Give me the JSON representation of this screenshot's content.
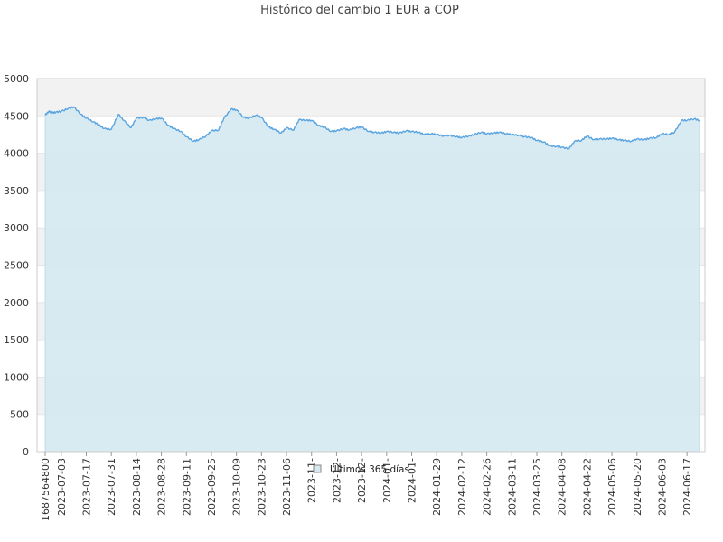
{
  "chart_data": {
    "type": "area",
    "title": "Histórico del cambio 1 EUR a COP",
    "xlabel": "",
    "ylabel": "",
    "ylim": [
      0,
      5000
    ],
    "yticks": [
      0,
      500,
      1000,
      1500,
      2000,
      2500,
      3000,
      3500,
      4000,
      4500,
      5000
    ],
    "xticks": [
      "1687564800",
      "2023-07-03",
      "2023-07-17",
      "2023-07-31",
      "2023-08-14",
      "2023-08-28",
      "2023-09-11",
      "2023-09-25",
      "2023-10-09",
      "2023-10-23",
      "2023-11-06",
      "2023-11-",
      "2023-12-",
      "2023-12-",
      "2024-01-",
      "2024-01-",
      "2024-01-29",
      "2024-02-12",
      "2024-02-26",
      "2024-03-11",
      "2024-03-25",
      "2024-04-08",
      "2024-04-22",
      "2024-05-06",
      "2024-05-20",
      "2024-06-03",
      "2024-06-17"
    ],
    "grid": true,
    "legend_position": "bottom-center",
    "colors": {
      "line": "#5aa4e0",
      "fill": "#d5e9f1",
      "band": "#f2f2f2"
    },
    "series": [
      {
        "name": "Últimos 365 días",
        "x": [
          "2023-06-24",
          "2023-06-26",
          "2023-06-28",
          "2023-06-30",
          "2023-07-03",
          "2023-07-07",
          "2023-07-10",
          "2023-07-14",
          "2023-07-17",
          "2023-07-21",
          "2023-07-24",
          "2023-07-27",
          "2023-07-31",
          "2023-08-04",
          "2023-08-07",
          "2023-08-11",
          "2023-08-14",
          "2023-08-18",
          "2023-08-21",
          "2023-08-25",
          "2023-08-28",
          "2023-09-01",
          "2023-09-04",
          "2023-09-08",
          "2023-09-11",
          "2023-09-15",
          "2023-09-18",
          "2023-09-22",
          "2023-09-25",
          "2023-09-29",
          "2023-10-02",
          "2023-10-06",
          "2023-10-09",
          "2023-10-13",
          "2023-10-16",
          "2023-10-20",
          "2023-10-23",
          "2023-10-27",
          "2023-10-30",
          "2023-11-03",
          "2023-11-06",
          "2023-11-10",
          "2023-11-13",
          "2023-11-17",
          "2023-11-20",
          "2023-11-24",
          "2023-11-27",
          "2023-12-01",
          "2023-12-04",
          "2023-12-08",
          "2023-12-11",
          "2023-12-15",
          "2023-12-18",
          "2023-12-22",
          "2023-12-25",
          "2023-12-29",
          "2024-01-01",
          "2024-01-05",
          "2024-01-08",
          "2024-01-12",
          "2024-01-15",
          "2024-01-19",
          "2024-01-22",
          "2024-01-26",
          "2024-01-29",
          "2024-02-02",
          "2024-02-05",
          "2024-02-09",
          "2024-02-12",
          "2024-02-16",
          "2024-02-19",
          "2024-02-23",
          "2024-02-26",
          "2024-03-01",
          "2024-03-04",
          "2024-03-08",
          "2024-03-11",
          "2024-03-15",
          "2024-03-18",
          "2024-03-22",
          "2024-03-25",
          "2024-03-29",
          "2024-04-01",
          "2024-04-05",
          "2024-04-08",
          "2024-04-12",
          "2024-04-15",
          "2024-04-19",
          "2024-04-22",
          "2024-04-26",
          "2024-04-29",
          "2024-05-03",
          "2024-05-06",
          "2024-05-10",
          "2024-05-13",
          "2024-05-17",
          "2024-05-20",
          "2024-05-24",
          "2024-05-27",
          "2024-05-31",
          "2024-06-03",
          "2024-06-07",
          "2024-06-10",
          "2024-06-14",
          "2024-06-17",
          "2024-06-21",
          "2024-06-24"
        ],
        "values": [
          4510,
          4560,
          4540,
          4550,
          4560,
          4600,
          4620,
          4520,
          4470,
          4420,
          4380,
          4330,
          4320,
          4520,
          4440,
          4340,
          4470,
          4480,
          4440,
          4460,
          4470,
          4370,
          4330,
          4290,
          4220,
          4160,
          4180,
          4230,
          4300,
          4310,
          4470,
          4590,
          4580,
          4480,
          4470,
          4510,
          4480,
          4350,
          4320,
          4270,
          4340,
          4310,
          4450,
          4440,
          4440,
          4370,
          4350,
          4290,
          4300,
          4330,
          4310,
          4340,
          4350,
          4290,
          4280,
          4270,
          4290,
          4280,
          4270,
          4300,
          4290,
          4280,
          4250,
          4260,
          4250,
          4230,
          4240,
          4220,
          4210,
          4230,
          4250,
          4280,
          4260,
          4270,
          4280,
          4260,
          4250,
          4240,
          4220,
          4210,
          4170,
          4150,
          4100,
          4090,
          4080,
          4060,
          4160,
          4170,
          4230,
          4180,
          4190,
          4190,
          4200,
          4180,
          4170,
          4160,
          4190,
          4180,
          4200,
          4210,
          4260,
          4250,
          4280,
          4440,
          4440,
          4460,
          4440
        ]
      }
    ]
  }
}
